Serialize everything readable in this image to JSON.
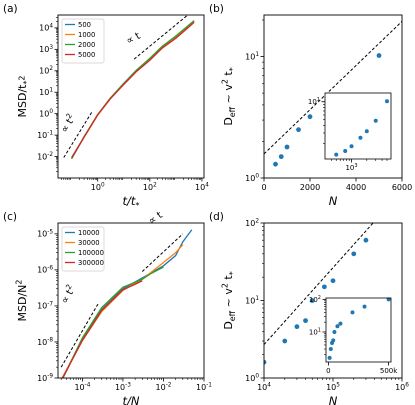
{
  "panels": [
    {
      "id": "a",
      "letter": "(a)",
      "type": "line",
      "xscale": "log",
      "yscale": "log",
      "xlim": [
        0.03,
        12000
      ],
      "ylim": [
        0.001,
        40000
      ],
      "xticks": [
        1,
        100,
        10000
      ],
      "xtick_labels": [
        "10^0",
        "10^2",
        "10^4"
      ],
      "yticks": [
        0.01,
        0.1,
        1,
        10,
        100,
        1000,
        10000
      ],
      "ytick_labels": [
        "10^-2",
        "10^-1",
        "10^0",
        "10^1",
        "10^2",
        "10^3",
        "10^4"
      ],
      "xlabel": "t/t*",
      "ylabel": "MSD/t*^2",
      "legend": {
        "placement": "top-left",
        "entries": [
          "500",
          "1000",
          "2000",
          "5000"
        ]
      },
      "series": [
        {
          "name": "500",
          "color": "#1f77b4",
          "x": [
            0.1,
            0.3,
            1,
            3,
            10,
            30,
            100,
            300,
            1000,
            3000,
            5000
          ],
          "y": [
            0.008,
            0.08,
            0.9,
            5,
            25,
            100,
            350,
            1300,
            3800,
            12000,
            20000
          ]
        },
        {
          "name": "1000",
          "color": "#ff7f0e",
          "x": [
            0.1,
            0.3,
            1,
            3,
            10,
            30,
            100,
            300,
            1000,
            3000,
            5000
          ],
          "y": [
            0.009,
            0.08,
            0.85,
            5,
            24,
            95,
            330,
            1200,
            3500,
            11000,
            19000
          ]
        },
        {
          "name": "2000",
          "color": "#2ca02c",
          "x": [
            0.1,
            0.3,
            1,
            3,
            10,
            30,
            100,
            300,
            1000,
            3000,
            5000
          ],
          "y": [
            0.008,
            0.085,
            0.9,
            5.2,
            26,
            105,
            380,
            1400,
            4200,
            13000,
            22000
          ]
        },
        {
          "name": "5000",
          "color": "#d62728",
          "x": [
            0.1,
            0.3,
            1,
            3,
            10,
            30,
            100,
            300,
            1000,
            3000,
            5000
          ],
          "y": [
            0.009,
            0.08,
            0.88,
            4.8,
            23,
            90,
            310,
            1150,
            3300,
            10500,
            18000
          ]
        }
      ],
      "guides": [
        {
          "label": "∝ t^2",
          "x": [
            0.05,
            0.6
          ],
          "y": [
            0.009,
            1.2
          ]
        },
        {
          "label": "∝ t",
          "x": [
            25,
            3000
          ],
          "y": [
            350,
            42000
          ]
        }
      ],
      "annotations": [
        {
          "text": "∝ t^2",
          "x": 0.06,
          "y": 0.12,
          "rotate": -58
        },
        {
          "text": "∝ t",
          "x": 15,
          "y": 1700,
          "rotate": -28
        }
      ]
    },
    {
      "id": "b",
      "letter": "(b)",
      "type": "scatter",
      "xscale": "linear",
      "yscale": "log",
      "xlim": [
        0,
        6000
      ],
      "ylim": [
        1,
        22
      ],
      "xticks": [
        0,
        2000,
        4000,
        6000
      ],
      "xtick_labels": [
        "0",
        "2000",
        "4000",
        "6000"
      ],
      "yticks": [
        1,
        10
      ],
      "ytick_labels": [
        "10^0",
        "10^1"
      ],
      "xlabel": "N",
      "ylabel": "D_eff ~ v^2 t*",
      "points": {
        "color": "#1f77b4",
        "x": [
          500,
          750,
          1000,
          1500,
          2000,
          3000,
          5000
        ],
        "y": [
          1.3,
          1.5,
          1.8,
          2.5,
          3.2,
          4.8,
          10.2
        ]
      },
      "guide": {
        "x": [
          0,
          6000
        ],
        "y": [
          1.58,
          19.5
        ]
      },
      "inset": {
        "xscale": "log",
        "yscale": "log",
        "xlim": [
          300,
          6000
        ],
        "ylim": [
          1.1,
          14
        ],
        "xticks": [
          1000
        ],
        "xtick_labels": [
          "10^3"
        ],
        "yticks": [
          10
        ],
        "ytick_labels": [
          "10^1"
        ],
        "points": {
          "color": "#1f77b4",
          "x": [
            500,
            750,
            1000,
            1500,
            2000,
            3000,
            5000
          ],
          "y": [
            1.3,
            1.5,
            1.8,
            2.5,
            3.2,
            4.8,
            10.2
          ]
        }
      }
    },
    {
      "id": "c",
      "letter": "(c)",
      "type": "line",
      "xscale": "log",
      "yscale": "log",
      "xlim": [
        2.5e-05,
        0.1
      ],
      "ylim": [
        1e-09,
        2e-05
      ],
      "xticks": [
        0.0001,
        0.001,
        0.01,
        0.1
      ],
      "xtick_labels": [
        "10^-4",
        "10^-3",
        "10^-2",
        "10^-1"
      ],
      "yticks": [
        1e-09,
        1e-08,
        1e-07,
        1e-06,
        1e-05
      ],
      "ytick_labels": [
        "10^-9",
        "10^-8",
        "10^-7",
        "10^-6",
        "10^-5"
      ],
      "xlabel": "t/N",
      "ylabel": "MSD/N^2",
      "legend": {
        "placement": "top-left",
        "entries": [
          "10000",
          "30000",
          "100000",
          "300000"
        ]
      },
      "series": [
        {
          "name": "10000",
          "color": "#1f77b4",
          "x": [
            3e-05,
            0.0001,
            0.0003,
            0.001,
            0.003,
            0.01,
            0.02,
            0.03,
            0.05
          ],
          "y": [
            8e-10,
            1.2e-08,
            8e-08,
            3e-07,
            6e-07,
            1.3e-06,
            2.5e-06,
            6e-06,
            1.3e-05
          ]
        },
        {
          "name": "30000",
          "color": "#ff7f0e",
          "x": [
            3e-05,
            0.0001,
            0.0003,
            0.001,
            0.003,
            0.01,
            0.02,
            0.03
          ],
          "y": [
            9e-10,
            1.1e-08,
            7e-08,
            2.7e-07,
            5.5e-07,
            1.6e-06,
            3e-06,
            5e-06
          ]
        },
        {
          "name": "100000",
          "color": "#2ca02c",
          "x": [
            3e-05,
            0.0001,
            0.0003,
            0.001,
            0.003,
            0.005,
            0.01
          ],
          "y": [
            8e-10,
            1.3e-08,
            9e-08,
            3.3e-07,
            5.5e-07,
            8e-07,
            1.2e-06
          ]
        },
        {
          "name": "300000",
          "color": "#d62728",
          "x": [
            3e-05,
            0.0001,
            0.0003,
            0.001,
            0.002,
            0.003
          ],
          "y": [
            8.5e-10,
            1.1e-08,
            7.5e-08,
            2.8e-07,
            4e-07,
            5e-07
          ]
        }
      ],
      "guides": [
        {
          "label": "∝ t^2",
          "x": [
            3e-05,
            0.00025
          ],
          "y": [
            2e-09,
            1.2e-07
          ]
        },
        {
          "label": "∝ t",
          "x": [
            0.003,
            0.03
          ],
          "y": [
            9e-07,
            1e-05
          ]
        }
      ],
      "annotations": [
        {
          "text": "∝ t^2",
          "x": 4e-05,
          "y": 1.1e-07,
          "rotate": -60
        },
        {
          "text": "∝ t",
          "x": 0.005,
          "y": 1.8e-05,
          "rotate": -35
        }
      ]
    },
    {
      "id": "d",
      "letter": "(d)",
      "type": "scatter",
      "xscale": "log",
      "yscale": "log",
      "xlim": [
        10000,
        1000000
      ],
      "ylim": [
        1,
        100
      ],
      "xticks": [
        10000,
        100000,
        1000000
      ],
      "xtick_labels": [
        "10^4",
        "10^5",
        "10^6"
      ],
      "yticks": [
        1,
        10,
        100
      ],
      "ytick_labels": [
        "10^0",
        "10^1",
        "10^2"
      ],
      "xlabel": "N",
      "ylabel": "D_eff ~ v^2 t*",
      "points": {
        "color": "#1f77b4",
        "x": [
          10000,
          20000,
          30000,
          40000,
          50000,
          75000,
          100000,
          200000,
          300000
        ],
        "y": [
          1.6,
          3.0,
          4.6,
          5.5,
          10,
          15,
          18,
          40,
          60
        ]
      },
      "guide": {
        "x": [
          10000,
          400000
        ],
        "y": [
          2.7,
          105
        ]
      },
      "inset": {
        "xscale": "linear",
        "yscale": "log",
        "xlim": [
          -20000,
          520000
        ],
        "ylim": [
          1.2,
          110
        ],
        "xticks": [
          0,
          500000
        ],
        "xtick_labels": [
          "0",
          "500k"
        ],
        "yticks": [
          10,
          100
        ],
        "ytick_labels": [
          "10^1",
          "10^2"
        ],
        "points": {
          "color": "#1f77b4",
          "x": [
            10000,
            20000,
            30000,
            40000,
            50000,
            75000,
            100000,
            200000,
            300000,
            500000
          ],
          "y": [
            1.6,
            3.0,
            4.6,
            5.5,
            10,
            15,
            18,
            40,
            60,
            100
          ]
        }
      }
    }
  ]
}
